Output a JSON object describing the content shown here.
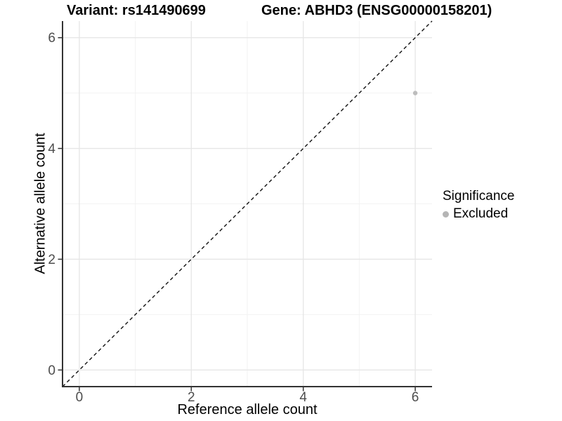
{
  "titles": {
    "variant": "Variant: rs141490699",
    "gene": "Gene: ABHD3 (ENSG00000158201)"
  },
  "legend": {
    "title": "Significance",
    "items": [
      {
        "label": "Excluded",
        "color": "#b5b5b5"
      }
    ]
  },
  "colors": {
    "point": "#bdbdbd",
    "legend_point": "#b0b0b0",
    "axis_line": "#333333",
    "tick_label": "#4d4d4d",
    "grid_major": "#e6e6e6",
    "grid_minor": "#f2f2f2",
    "identity_line": "#111111",
    "background": "#ffffff"
  },
  "chart_data": {
    "type": "scatter",
    "title": "Variant: rs141490699 | Gene: ABHD3 (ENSG00000158201)",
    "xlabel": "Reference allele count",
    "ylabel": "Alternative allele count",
    "xlim": [
      -0.3,
      6.3
    ],
    "ylim": [
      -0.3,
      6.3
    ],
    "x_ticks": [
      0,
      2,
      4,
      6
    ],
    "y_ticks": [
      0,
      2,
      4,
      6
    ],
    "x_minor_ticks": [
      1,
      3,
      5
    ],
    "y_minor_ticks": [
      1,
      3,
      5
    ],
    "grid": true,
    "legend_position": "right",
    "legend_title": "Significance",
    "series": [
      {
        "name": "Excluded",
        "color": "#bdbdbd",
        "points": [
          {
            "x": 6,
            "y": 5
          }
        ]
      }
    ],
    "reference_line": {
      "type": "identity",
      "equation": "y = x",
      "style": "dashed",
      "from": [
        -0.3,
        -0.3
      ],
      "to": [
        6.3,
        6.3
      ]
    }
  }
}
